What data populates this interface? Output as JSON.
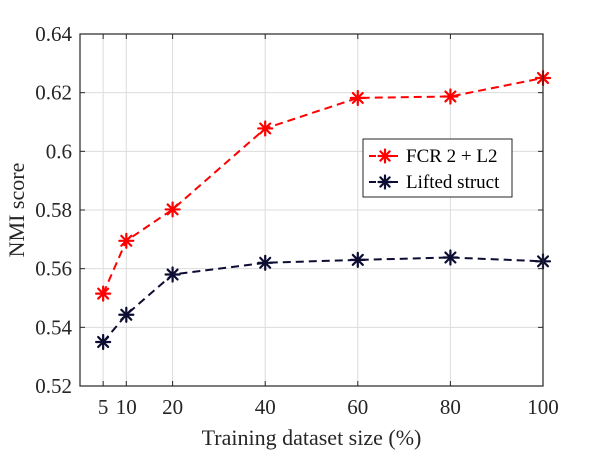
{
  "chart_data": {
    "type": "line",
    "title": "",
    "xlabel": "Training dataset size (%)",
    "ylabel": "NMI score",
    "xlim": [
      0,
      100
    ],
    "ylim": [
      0.52,
      0.64
    ],
    "xticks": [
      5,
      10,
      20,
      40,
      60,
      80,
      100
    ],
    "xtick_labels": [
      "5",
      "10",
      "20",
      "40",
      "60",
      "80",
      "100"
    ],
    "yticks": [
      0.52,
      0.54,
      0.56,
      0.58,
      0.6,
      0.62,
      0.64
    ],
    "ytick_labels": [
      "0.52",
      "0.54",
      "0.56",
      "0.58",
      "0.6",
      "0.62",
      "0.64"
    ],
    "grid": true,
    "legend_position": "center-right",
    "x": [
      5,
      10,
      20,
      40,
      60,
      80,
      100
    ],
    "series": [
      {
        "name": "FCR 2 + L2",
        "color": "#ff0000",
        "marker": "asterisk",
        "linestyle": "dashed",
        "values": [
          0.5515,
          0.5695,
          0.5802,
          0.6078,
          0.6182,
          0.6187,
          0.625
        ]
      },
      {
        "name": "Lifted struct",
        "color": "#0d0d33",
        "marker": "asterisk",
        "linestyle": "dashed",
        "values": [
          0.535,
          0.5443,
          0.558,
          0.562,
          0.563,
          0.5638,
          0.5625
        ]
      }
    ]
  }
}
